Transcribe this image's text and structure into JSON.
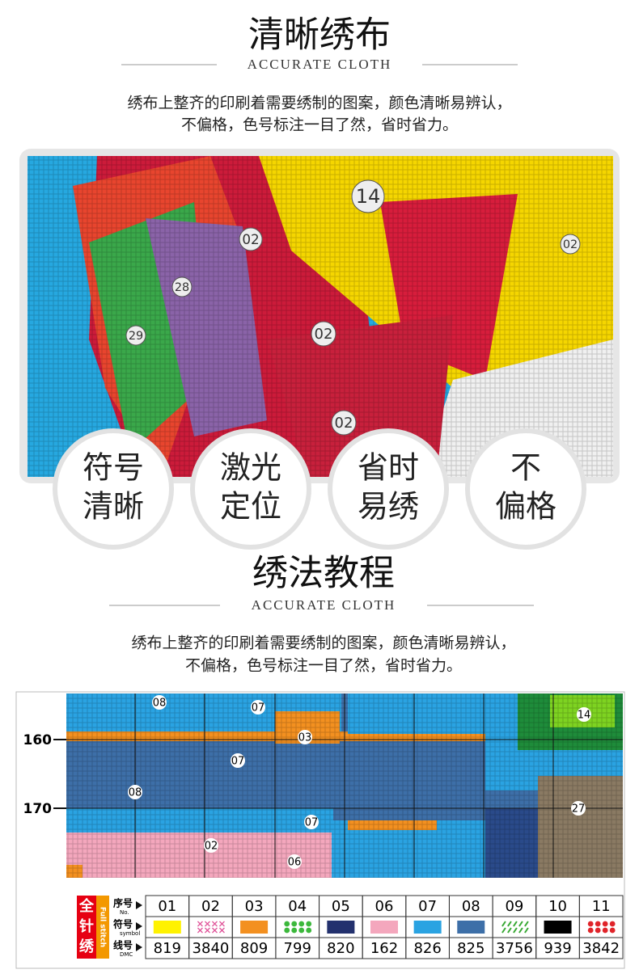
{
  "section1": {
    "title": "清晰绣布",
    "subtitle": "ACCURATE CLOTH",
    "description": [
      "绣布上整齐的印刷着需要绣制的图案，颜色清晰易辨认，",
      "不偏格，色号标注一目了然，省时省力。"
    ]
  },
  "photo": {
    "labels": [
      "14",
      "02",
      "02",
      "02",
      "28",
      "29",
      "02"
    ]
  },
  "badges": [
    [
      "符号",
      "清晰"
    ],
    [
      "激光",
      "定位"
    ],
    [
      "省时",
      "易绣"
    ],
    [
      "不",
      "偏格"
    ]
  ],
  "section2": {
    "title": "绣法教程",
    "subtitle": "ACCURATE CLOTH",
    "description": [
      "绣布上整齐的印刷着需要绣制的图案，颜色清晰易辨认，",
      "不偏格，色号标注一目了然，省时省力。"
    ]
  },
  "pattern": {
    "row_labels": [
      "160",
      "170"
    ],
    "cell_labels": [
      "08",
      "07",
      "03",
      "07",
      "08",
      "07",
      "02",
      "06",
      "14",
      "27"
    ]
  },
  "legend": {
    "side": "全针绣",
    "side_en": "Full stitch",
    "row_headers": [
      {
        "zh": "序号",
        "en": "No."
      },
      {
        "zh": "符号",
        "en": "symbol"
      },
      {
        "zh": "线号",
        "en": "DMC"
      }
    ],
    "columns": [
      {
        "no": "01",
        "color": "#fff200",
        "style": "fill",
        "dmc": "819"
      },
      {
        "no": "02",
        "color": "#e0559a",
        "style": "cross",
        "dmc": "3840"
      },
      {
        "no": "03",
        "color": "#f39020",
        "style": "fill",
        "dmc": "809"
      },
      {
        "no": "04",
        "color": "#3cb83c",
        "style": "dots",
        "dmc": "799"
      },
      {
        "no": "05",
        "color": "#23316e",
        "style": "fill",
        "dmc": "820"
      },
      {
        "no": "06",
        "color": "#f4a7bd",
        "style": "fill",
        "dmc": "162"
      },
      {
        "no": "07",
        "color": "#2aa3e2",
        "style": "fill",
        "dmc": "826"
      },
      {
        "no": "08",
        "color": "#3d6fa8",
        "style": "fill",
        "dmc": "825"
      },
      {
        "no": "09",
        "color": "#39a935",
        "style": "slash",
        "dmc": "3756"
      },
      {
        "no": "10",
        "color": "#000000",
        "style": "fill",
        "dmc": "939"
      },
      {
        "no": "11",
        "color": "#e0242a",
        "style": "dots",
        "dmc": "3842"
      }
    ]
  }
}
